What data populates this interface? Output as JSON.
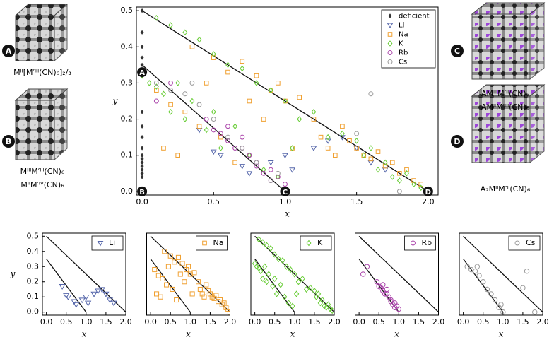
{
  "structures": [
    {
      "badge": "A",
      "label": [
        "Mᴵᴵ[M′ᴵᴵᴵ(CN)₆]₂/₃"
      ]
    },
    {
      "badge": "B",
      "label": [
        "MᴵᴵᴵM′ᴵᴵᴵ(CN)₆",
        "MᴵᴵM′ᴵⱽ(CN)₆"
      ]
    },
    {
      "badge": "C",
      "label": [
        "AMᴵᴵᴵM′ᴵᴵ(CN)₆",
        "AMᴵᴵM′ᴵᴵᴵ(CN)₆"
      ]
    },
    {
      "badge": "D",
      "label": [
        "A₂MᴵᴵM′ᴵᴵ(CN)₆"
      ]
    }
  ],
  "chart_data": [
    {
      "type": "scatter",
      "xlabel": "x",
      "ylabel": "y",
      "xlim": [
        -0.04,
        2.07
      ],
      "ylim": [
        -0.01,
        0.51
      ],
      "xticks": [
        {
          "value": 0,
          "label": "0.0"
        },
        0.5,
        {
          "value": 1,
          "label": "1.0"
        },
        1.5,
        {
          "value": 2,
          "label": "2.0"
        }
      ],
      "yticks": [
        {
          "value": 0,
          "label": "0.0"
        },
        0.1,
        0.2,
        0.3,
        0.4,
        0.5
      ],
      "legend": "upper right",
      "lines": [
        {
          "x": [
            0,
            2
          ],
          "values": [
            0.5,
            0
          ]
        },
        {
          "x": [
            0,
            1
          ],
          "values": [
            0.35,
            0
          ]
        }
      ],
      "annotations": [
        {
          "text": "A",
          "x": 0,
          "y": 0.33
        },
        {
          "text": "B",
          "x": 0,
          "y": 0
        },
        {
          "text": "C",
          "x": 1,
          "y": 0
        },
        {
          "text": "D",
          "x": 2,
          "y": 0
        }
      ],
      "series": [
        {
          "name": "deficient",
          "color": "#333333",
          "marker": "diamond",
          "filled": true,
          "x": [
            0,
            0,
            0,
            0,
            0,
            0,
            0,
            0,
            0,
            0,
            0,
            0,
            0,
            0,
            0,
            0,
            0
          ],
          "values": [
            0.5,
            0.44,
            0.4,
            0.37,
            0.35,
            0.32,
            0.22,
            0.18,
            0.15,
            0.12,
            0.1,
            0.09,
            0.08,
            0.07,
            0.06,
            0.05,
            0.04
          ]
        },
        {
          "name": "Li",
          "color": "#5566aa",
          "marker": "triangle",
          "x": [
            0.55,
            0.7,
            0.75,
            0.9,
            1.0,
            1.05,
            1.2,
            1.3,
            1.4,
            1.5,
            1.6,
            1.7,
            0.4,
            0.5
          ],
          "values": [
            0.1,
            0.07,
            0.05,
            0.08,
            0.1,
            0.06,
            0.12,
            0.14,
            0.15,
            0.12,
            0.08,
            0.06,
            0.17,
            0.11
          ]
        },
        {
          "name": "Na",
          "color": "#f0a030",
          "marker": "square",
          "x": [
            0.1,
            0.15,
            0.2,
            0.25,
            0.3,
            0.35,
            0.4,
            0.45,
            0.5,
            0.55,
            0.6,
            0.65,
            0.7,
            0.75,
            0.8,
            0.85,
            0.9,
            0.95,
            1.0,
            1.05,
            1.1,
            1.2,
            1.25,
            1.3,
            1.35,
            1.4,
            1.45,
            1.5,
            1.55,
            1.6,
            1.65,
            1.7,
            1.75,
            1.8,
            1.85,
            1.9,
            1.95,
            2.0
          ],
          "values": [
            0.28,
            0.12,
            0.24,
            0.1,
            0.22,
            0.4,
            0.18,
            0.3,
            0.37,
            0.15,
            0.33,
            0.08,
            0.36,
            0.25,
            0.32,
            0.2,
            0.28,
            0.3,
            0.25,
            0.12,
            0.26,
            0.2,
            0.15,
            0.12,
            0.1,
            0.18,
            0.14,
            0.12,
            0.1,
            0.09,
            0.11,
            0.07,
            0.08,
            0.05,
            0.06,
            0.03,
            0.02,
            0.0
          ]
        },
        {
          "name": "K",
          "color": "#66cc33",
          "marker": "diamond",
          "x": [
            0.0,
            0.05,
            0.1,
            0.1,
            0.15,
            0.2,
            0.2,
            0.25,
            0.3,
            0.3,
            0.35,
            0.4,
            0.45,
            0.5,
            0.5,
            0.55,
            0.6,
            0.65,
            0.7,
            0.75,
            0.8,
            0.85,
            0.9,
            0.95,
            1.0,
            1.05,
            1.1,
            1.2,
            1.3,
            1.4,
            1.5,
            1.55,
            1.6,
            1.65,
            1.7,
            1.75,
            1.8,
            1.85,
            1.9,
            1.95
          ],
          "values": [
            0.32,
            0.3,
            0.48,
            0.29,
            0.27,
            0.46,
            0.22,
            0.3,
            0.44,
            0.2,
            0.25,
            0.42,
            0.17,
            0.38,
            0.22,
            0.12,
            0.35,
            0.18,
            0.34,
            0.1,
            0.3,
            0.06,
            0.28,
            0.04,
            0.25,
            0.12,
            0.2,
            0.22,
            0.15,
            0.16,
            0.14,
            0.1,
            0.12,
            0.06,
            0.08,
            0.04,
            0.03,
            0.05,
            0.02,
            0.01
          ]
        },
        {
          "name": "Rb",
          "color": "#aa44aa",
          "marker": "circle",
          "x": [
            0.1,
            0.2,
            0.45,
            0.5,
            0.55,
            0.6,
            0.65,
            0.7,
            0.75,
            0.8,
            0.85,
            0.9,
            0.95,
            1.0,
            0.6,
            0.7,
            0.8,
            0.9
          ],
          "values": [
            0.25,
            0.3,
            0.2,
            0.17,
            0.16,
            0.14,
            0.12,
            0.12,
            0.1,
            0.07,
            0.05,
            0.06,
            0.04,
            0.02,
            0.18,
            0.15,
            0.08,
            0.03
          ]
        },
        {
          "name": "Cs",
          "color": "#999999",
          "marker": "circle",
          "x": [
            0.1,
            0.2,
            0.3,
            0.35,
            0.4,
            0.5,
            0.6,
            0.7,
            0.8,
            0.9,
            0.95,
            1.0,
            1.5,
            1.6,
            1.8
          ],
          "values": [
            0.3,
            0.28,
            0.27,
            0.3,
            0.24,
            0.2,
            0.15,
            0.12,
            0.08,
            0.03,
            0.05,
            0.0,
            0.16,
            0.27,
            0.0
          ]
        }
      ]
    },
    {
      "type": "scatter",
      "xlabel": "x",
      "ylabel": "y",
      "xlim": [
        -0.1,
        2.0
      ],
      "ylim": [
        -0.02,
        0.52
      ],
      "xticks": [
        {
          "value": 0,
          "label": "0.0"
        },
        0.5,
        {
          "value": 1,
          "label": "1.0"
        },
        1.5,
        {
          "value": 2,
          "label": "2.0"
        }
      ],
      "yticks": [
        {
          "value": 0,
          "label": "0.0"
        },
        0.1,
        0.2,
        0.3,
        0.4,
        0.5
      ],
      "legend": "upper right",
      "lines": [
        {
          "x": [
            0,
            2
          ],
          "values": [
            0.5,
            0
          ]
        },
        {
          "x": [
            0,
            1
          ],
          "values": [
            0.35,
            0
          ]
        }
      ],
      "series": [
        {
          "name": "Li",
          "color": "#5566aa",
          "marker": "triangle",
          "x": [
            0.55,
            0.7,
            0.75,
            0.9,
            1.0,
            1.05,
            1.2,
            1.3,
            1.4,
            1.5,
            1.6,
            1.7,
            0.4,
            0.5
          ],
          "values": [
            0.1,
            0.07,
            0.05,
            0.08,
            0.1,
            0.06,
            0.12,
            0.14,
            0.15,
            0.12,
            0.08,
            0.06,
            0.17,
            0.11
          ]
        }
      ]
    },
    {
      "type": "scatter",
      "xlabel": "x",
      "xlim": [
        -0.1,
        2.0
      ],
      "ylim": [
        -0.02,
        0.52
      ],
      "xticks": [
        {
          "value": 0,
          "label": "0.0"
        },
        0.5,
        {
          "value": 1,
          "label": "1.0"
        },
        1.5,
        {
          "value": 2,
          "label": "2.0"
        }
      ],
      "legend": "upper right",
      "lines": [
        {
          "x": [
            0,
            2
          ],
          "values": [
            0.5,
            0
          ]
        },
        {
          "x": [
            0,
            1
          ],
          "values": [
            0.35,
            0
          ]
        }
      ],
      "series": [
        {
          "name": "Na",
          "color": "#f0a030",
          "marker": "square",
          "x": [
            0.1,
            0.15,
            0.2,
            0.25,
            0.3,
            0.35,
            0.4,
            0.45,
            0.5,
            0.55,
            0.6,
            0.65,
            0.7,
            0.75,
            0.8,
            0.85,
            0.9,
            0.95,
            1.0,
            1.05,
            1.1,
            1.2,
            1.25,
            1.3,
            1.35,
            1.4,
            1.45,
            1.5,
            1.55,
            1.6,
            1.65,
            1.7,
            1.75,
            1.8,
            1.85,
            1.9,
            1.95,
            2.0
          ],
          "values": [
            0.28,
            0.12,
            0.24,
            0.1,
            0.22,
            0.4,
            0.18,
            0.3,
            0.37,
            0.15,
            0.33,
            0.08,
            0.36,
            0.25,
            0.32,
            0.2,
            0.28,
            0.3,
            0.25,
            0.12,
            0.26,
            0.2,
            0.15,
            0.12,
            0.1,
            0.18,
            0.14,
            0.12,
            0.1,
            0.09,
            0.11,
            0.07,
            0.08,
            0.05,
            0.06,
            0.03,
            0.02,
            0.0
          ]
        }
      ]
    },
    {
      "type": "scatter",
      "xlabel": "x",
      "xlim": [
        -0.1,
        2.0
      ],
      "ylim": [
        -0.02,
        0.52
      ],
      "xticks": [
        {
          "value": 0,
          "label": "0.0"
        },
        0.5,
        {
          "value": 1,
          "label": "1.0"
        },
        1.5,
        {
          "value": 2,
          "label": "2.0"
        }
      ],
      "legend": "upper right",
      "lines": [
        {
          "x": [
            0,
            2
          ],
          "values": [
            0.5,
            0
          ]
        },
        {
          "x": [
            0,
            1
          ],
          "values": [
            0.35,
            0
          ]
        }
      ],
      "series": [
        {
          "name": "K",
          "color": "#66cc33",
          "marker": "diamond",
          "x": [
            0.0,
            0.05,
            0.1,
            0.1,
            0.15,
            0.2,
            0.2,
            0.25,
            0.3,
            0.3,
            0.35,
            0.4,
            0.45,
            0.5,
            0.5,
            0.55,
            0.6,
            0.65,
            0.7,
            0.75,
            0.8,
            0.85,
            0.9,
            0.95,
            1.0,
            1.05,
            1.1,
            1.2,
            1.3,
            1.4,
            1.5,
            1.55,
            1.6,
            1.65,
            1.7,
            1.75,
            1.8,
            1.85,
            1.9,
            1.95
          ],
          "values": [
            0.32,
            0.3,
            0.48,
            0.29,
            0.27,
            0.46,
            0.22,
            0.3,
            0.44,
            0.2,
            0.25,
            0.42,
            0.17,
            0.38,
            0.22,
            0.12,
            0.35,
            0.18,
            0.34,
            0.1,
            0.3,
            0.06,
            0.28,
            0.04,
            0.25,
            0.12,
            0.2,
            0.22,
            0.15,
            0.16,
            0.14,
            0.1,
            0.12,
            0.06,
            0.08,
            0.04,
            0.03,
            0.05,
            0.02,
            0.01
          ]
        }
      ]
    },
    {
      "type": "scatter",
      "xlabel": "x",
      "xlim": [
        -0.1,
        2.0
      ],
      "ylim": [
        -0.02,
        0.52
      ],
      "xticks": [
        {
          "value": 0,
          "label": "0.0"
        },
        0.5,
        {
          "value": 1,
          "label": "1.0"
        },
        1.5,
        {
          "value": 2,
          "label": "2.0"
        }
      ],
      "legend": "upper right",
      "lines": [
        {
          "x": [
            0,
            2
          ],
          "values": [
            0.5,
            0
          ]
        },
        {
          "x": [
            0,
            1
          ],
          "values": [
            0.35,
            0
          ]
        }
      ],
      "series": [
        {
          "name": "Rb",
          "color": "#aa44aa",
          "marker": "circle",
          "x": [
            0.1,
            0.2,
            0.45,
            0.5,
            0.55,
            0.6,
            0.65,
            0.7,
            0.75,
            0.8,
            0.85,
            0.9,
            0.95,
            1.0,
            0.6,
            0.7,
            0.8,
            0.9
          ],
          "values": [
            0.25,
            0.3,
            0.2,
            0.17,
            0.16,
            0.14,
            0.12,
            0.12,
            0.1,
            0.07,
            0.05,
            0.06,
            0.04,
            0.02,
            0.18,
            0.15,
            0.08,
            0.03
          ]
        }
      ]
    },
    {
      "type": "scatter",
      "xlabel": "x",
      "xlim": [
        -0.1,
        2.0
      ],
      "ylim": [
        -0.02,
        0.52
      ],
      "xticks": [
        {
          "value": 0,
          "label": "0.0"
        },
        0.5,
        {
          "value": 1,
          "label": "1.0"
        },
        1.5,
        {
          "value": 2,
          "label": "2.0"
        }
      ],
      "legend": "upper right",
      "lines": [
        {
          "x": [
            0,
            2
          ],
          "values": [
            0.5,
            0
          ]
        },
        {
          "x": [
            0,
            1
          ],
          "values": [
            0.35,
            0
          ]
        }
      ],
      "series": [
        {
          "name": "Cs",
          "color": "#999999",
          "marker": "circle",
          "x": [
            0.1,
            0.2,
            0.3,
            0.35,
            0.4,
            0.5,
            0.6,
            0.7,
            0.8,
            0.9,
            0.95,
            1.0,
            1.5,
            1.6,
            1.8
          ],
          "values": [
            0.3,
            0.28,
            0.27,
            0.3,
            0.24,
            0.2,
            0.15,
            0.12,
            0.08,
            0.03,
            0.05,
            0.0,
            0.16,
            0.27,
            0.0
          ]
        }
      ]
    }
  ]
}
